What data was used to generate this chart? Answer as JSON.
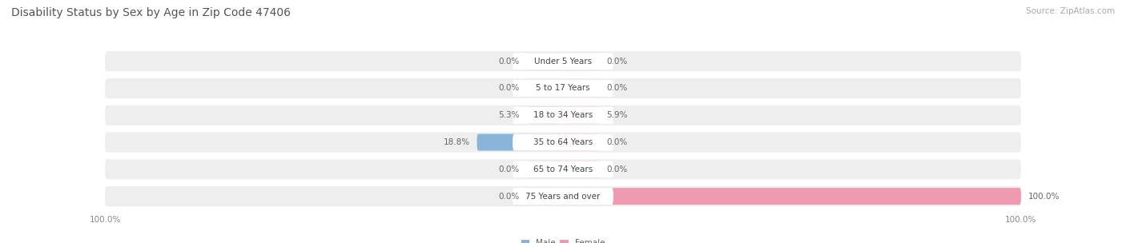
{
  "title": "Disability Status by Sex by Age in Zip Code 47406",
  "source": "Source: ZipAtlas.com",
  "categories": [
    "Under 5 Years",
    "5 to 17 Years",
    "18 to 34 Years",
    "35 to 64 Years",
    "65 to 74 Years",
    "75 Years and over"
  ],
  "male_values": [
    0.0,
    0.0,
    5.3,
    18.8,
    0.0,
    0.0
  ],
  "female_values": [
    0.0,
    0.0,
    5.9,
    0.0,
    0.0,
    100.0
  ],
  "male_color": "#8ab4d8",
  "female_color": "#f09ab0",
  "male_color_dark": "#5a8fc0",
  "female_color_dark": "#e06080",
  "row_bg_color": "#eeeeee",
  "row_border_color": "#dddddd",
  "label_bg_color": "#ffffff",
  "max_value": 100.0,
  "stub_value": 8.0,
  "title_fontsize": 10,
  "source_fontsize": 7.5,
  "label_fontsize": 7.5,
  "cat_fontsize": 7.5,
  "tick_fontsize": 7.5
}
